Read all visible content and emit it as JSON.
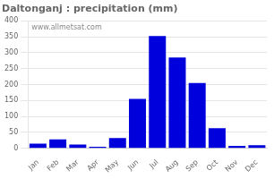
{
  "chart_data": {
    "type": "bar",
    "title": "Daltonganj : precipitation (mm)",
    "categories": [
      "Jan",
      "Feb",
      "Mar",
      "Apr",
      "May",
      "Jun",
      "Jul",
      "Aug",
      "Sep",
      "Oct",
      "Nov",
      "Dec"
    ],
    "values": [
      15,
      28,
      12,
      5,
      32,
      155,
      352,
      285,
      205,
      63,
      8,
      10
    ],
    "color": "#0000DD",
    "ylim": [
      0,
      400
    ],
    "yticks": [
      0,
      50,
      100,
      150,
      200,
      250,
      300,
      350,
      400
    ],
    "grid": true,
    "annotations": [
      "www.allmetsat.com"
    ]
  }
}
